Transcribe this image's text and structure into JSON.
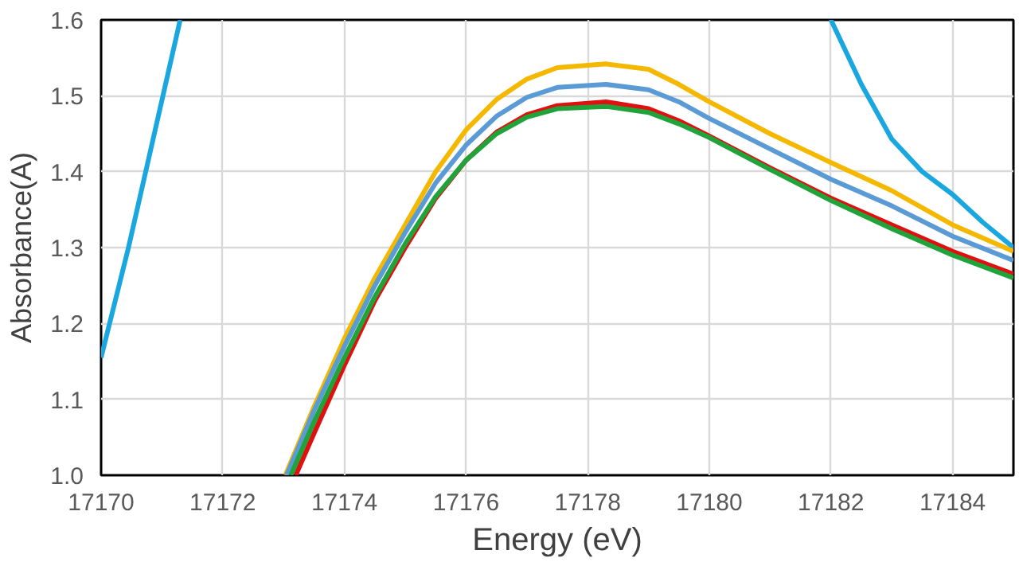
{
  "chart_data": {
    "type": "line",
    "xlabel": "Energy (eV)",
    "ylabel": "Absorbance(A)",
    "xlim": [
      17170,
      17185
    ],
    "ylim": [
      1.0,
      1.6
    ],
    "xticks": [
      17170,
      17172,
      17174,
      17176,
      17178,
      17180,
      17182,
      17184
    ],
    "yticks": [
      {
        "value": 1.0,
        "label": "1.0"
      },
      1.1,
      1.2,
      1.3,
      1.4,
      1.5,
      {
        "value": 1.6,
        "label": "1.6"
      }
    ],
    "grid": true,
    "line_style": "solid",
    "marker": "none",
    "series": [
      {
        "color": "#1aa7e0",
        "x": [
          17170,
          17170.45,
          17171.3,
          17176,
          17182,
          17182.5,
          17183,
          17183.5,
          17184,
          17184.5,
          17185
        ],
        "values": [
          1.155,
          1.3,
          1.6,
          null,
          1.6,
          1.515,
          1.443,
          1.4,
          1.37,
          1.333,
          1.3
        ]
      },
      {
        "color": "#f5b800",
        "x": [
          17173.03,
          17173.5,
          17174,
          17174.5,
          17175,
          17175.5,
          17176,
          17176.5,
          17177,
          17177.5,
          17178.3,
          17179,
          17179.5,
          17180,
          17181,
          17182,
          17183,
          17184,
          17185
        ],
        "values": [
          1.0,
          1.09,
          1.18,
          1.26,
          1.33,
          1.4,
          1.455,
          1.495,
          1.522,
          1.537,
          1.542,
          1.535,
          1.515,
          1.492,
          1.45,
          1.412,
          1.375,
          1.33,
          1.295
        ]
      },
      {
        "color": "#5b9bd5",
        "x": [
          17173.05,
          17173.5,
          17174,
          17174.5,
          17175,
          17175.5,
          17176,
          17176.5,
          17177,
          17177.5,
          17178.3,
          17179,
          17179.5,
          17180,
          17181,
          17182,
          17183,
          17184,
          17185
        ],
        "values": [
          1.0,
          1.085,
          1.17,
          1.25,
          1.32,
          1.385,
          1.435,
          1.473,
          1.498,
          1.511,
          1.515,
          1.508,
          1.492,
          1.47,
          1.43,
          1.39,
          1.355,
          1.315,
          1.283
        ]
      },
      {
        "color": "#e01010",
        "x": [
          17173.2,
          17173.5,
          17174,
          17174.5,
          17175,
          17175.5,
          17176,
          17176.5,
          17177,
          17177.5,
          17178.3,
          17179,
          17179.5,
          17180,
          17181,
          17182,
          17183,
          17184,
          17185
        ],
        "values": [
          1.0,
          1.055,
          1.145,
          1.23,
          1.3,
          1.365,
          1.415,
          1.452,
          1.475,
          1.487,
          1.492,
          1.483,
          1.467,
          1.447,
          1.405,
          1.365,
          1.33,
          1.295,
          1.265
        ]
      },
      {
        "color": "#1fa33a",
        "x": [
          17173.12,
          17173.5,
          17174,
          17174.5,
          17175,
          17175.5,
          17176,
          17176.5,
          17177,
          17177.5,
          17178.3,
          17179,
          17179.5,
          17180,
          17181,
          17182,
          17183,
          17184,
          17185
        ],
        "values": [
          1.0,
          1.07,
          1.155,
          1.235,
          1.305,
          1.367,
          1.415,
          1.45,
          1.472,
          1.483,
          1.486,
          1.478,
          1.463,
          1.445,
          1.403,
          1.362,
          1.325,
          1.29,
          1.26
        ]
      }
    ]
  }
}
